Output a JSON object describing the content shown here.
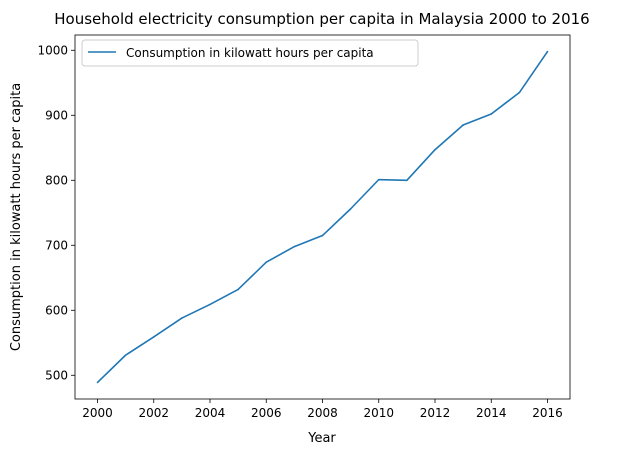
{
  "chart_data": {
    "type": "line",
    "title": "Household electricity consumption per capita in Malaysia 2000 to 2016",
    "xlabel": "Year",
    "ylabel": "Consumption in kilowatt hours per capita",
    "x": [
      2000,
      2001,
      2002,
      2003,
      2004,
      2005,
      2006,
      2007,
      2008,
      2009,
      2010,
      2011,
      2012,
      2013,
      2014,
      2015,
      2016
    ],
    "series": [
      {
        "name": "Consumption in kilowatt hours per capita",
        "color": "#1f77b4",
        "values": [
          489,
          531,
          559,
          588,
          609,
          632,
          674,
          698,
          715,
          756,
          801,
          800,
          847,
          885,
          902,
          935,
          998
        ]
      }
    ],
    "xticks": [
      "2000",
      "2002",
      "2004",
      "2006",
      "2008",
      "2010",
      "2012",
      "2014",
      "2016"
    ],
    "yticks": [
      "500",
      "600",
      "700",
      "800",
      "900",
      "1000"
    ],
    "xlim": [
      1999.2,
      2016.8
    ],
    "ylim": [
      463.5,
      1023.5
    ],
    "grid": false,
    "legend_position": "upper-left"
  }
}
